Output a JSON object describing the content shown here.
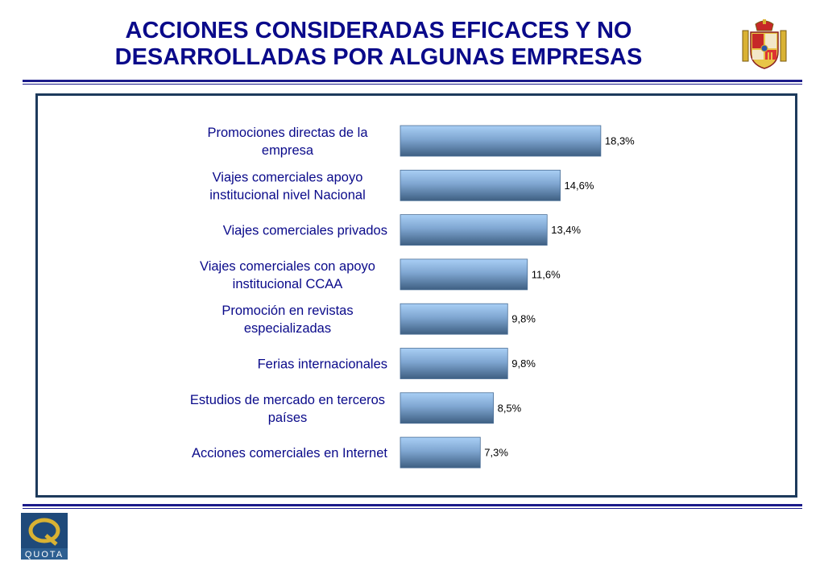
{
  "header": {
    "title_line1": "ACCIONES CONSIDERADAS EFICACES Y NO",
    "title_line2": "DESARROLLADAS POR ALGUNAS EMPRESAS"
  },
  "footer": {
    "logo_text": "QUOTA",
    "logo_letter": "Q"
  },
  "colors": {
    "title": "#0a0a8a",
    "category_label": "#0a0a8a",
    "bar_light": "#a9cff5",
    "bar_dark": "#3e5f82",
    "frame": "#1d3a5c",
    "rule": "#1b1b8a",
    "logo": "#1f4a7a",
    "logo_accent": "#d9b233"
  },
  "chart_data": {
    "type": "bar",
    "orientation": "horizontal",
    "categories": [
      [
        "Promociones directas de la",
        "empresa"
      ],
      [
        "Viajes comerciales apoyo",
        "institucional nivel Nacional"
      ],
      [
        "Viajes comerciales privados"
      ],
      [
        "Viajes comerciales con apoyo",
        "institucional CCAA"
      ],
      [
        "Promoción en revistas",
        "especializadas"
      ],
      [
        "Ferias internacionales"
      ],
      [
        "Estudios de mercado en terceros",
        "países"
      ],
      [
        "Acciones comerciales en Internet"
      ]
    ],
    "values": [
      18.3,
      14.6,
      13.4,
      11.6,
      9.8,
      9.8,
      8.5,
      7.3
    ],
    "value_labels": [
      "18,3%",
      "14,6%",
      "13,4%",
      "11,6%",
      "9,8%",
      "9,8%",
      "8,5%",
      "7,3%"
    ],
    "xlim": [
      0,
      20
    ],
    "grid": false,
    "legend": "none"
  }
}
